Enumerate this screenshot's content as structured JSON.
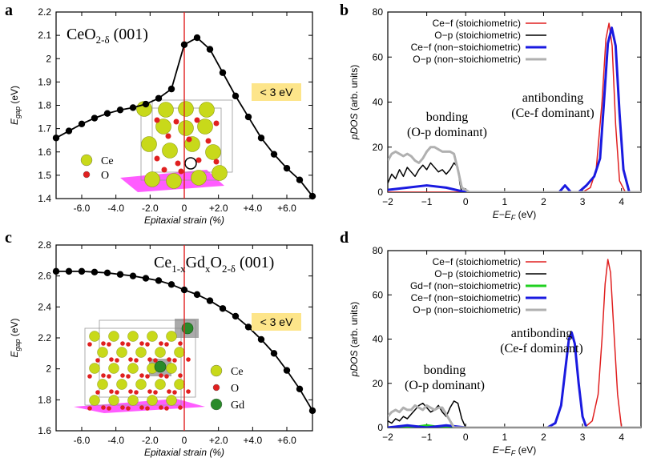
{
  "panels": {
    "a": {
      "letter": "a"
    },
    "b": {
      "letter": "b"
    },
    "c": {
      "letter": "c"
    },
    "d": {
      "letter": "d"
    }
  },
  "chart_data": [
    {
      "id": "a",
      "type": "line",
      "title_main": "CeO",
      "title_sub": "2-δ",
      "title_tail": " (001)",
      "xlabel": "Epitaxial strain (%)",
      "ylabel_main": "E",
      "ylabel_sub": "gap",
      "ylabel_tail": " (eV)",
      "xlim": [
        -7.5,
        7.5
      ],
      "ylim": [
        1.4,
        2.2
      ],
      "xticks": [
        -6,
        -4,
        -2,
        0,
        2,
        4,
        6
      ],
      "xtick_labels": [
        "-6.0",
        "-4.0",
        "-2.0",
        "0",
        "+2.0",
        "+4.0",
        "+6.0"
      ],
      "yticks": [
        1.4,
        1.5,
        1.6,
        1.7,
        1.8,
        1.9,
        2.0,
        2.1,
        2.2
      ],
      "ytick_labels": [
        "1.4",
        "1.5",
        "1.6",
        "1.7",
        "1.8",
        "1.9",
        "2",
        "2.1",
        "2.2"
      ],
      "vline_x": 0,
      "annotation": "< 3 eV",
      "legend": [
        {
          "name": "Ce",
          "color": "#c8d91a"
        },
        {
          "name": "O",
          "color": "#e02020"
        }
      ],
      "series": [
        {
          "name": "Egap",
          "color": "#000000",
          "x": [
            -7.5,
            -6.75,
            -6.0,
            -5.25,
            -4.5,
            -3.75,
            -3.0,
            -2.25,
            -1.5,
            -0.75,
            0.0,
            0.75,
            1.5,
            2.25,
            3.0,
            3.75,
            4.5,
            5.25,
            6.0,
            6.75,
            7.5
          ],
          "y": [
            1.66,
            1.69,
            1.72,
            1.745,
            1.765,
            1.78,
            1.79,
            1.805,
            1.83,
            1.87,
            2.06,
            2.09,
            2.04,
            1.94,
            1.84,
            1.75,
            1.66,
            1.59,
            1.53,
            1.48,
            1.41
          ]
        }
      ]
    },
    {
      "id": "b",
      "type": "line",
      "xlabel_main": "E",
      "xlabel_mid": "−E",
      "xlabel_sub": "F",
      "xlabel_tail": " (eV)",
      "ylabel_main": "pDOS",
      "ylabel_tail": " (arb. units)",
      "xlim": [
        -2,
        4.5
      ],
      "ylim": [
        0,
        80
      ],
      "xticks": [
        -2,
        -1,
        0,
        1,
        2,
        3,
        4
      ],
      "xtick_labels": [
        "−2",
        "−1",
        "0",
        "1",
        "2",
        "3",
        "4"
      ],
      "yticks": [
        0,
        20,
        40,
        60,
        80
      ],
      "ytick_labels": [
        "0",
        "20",
        "40",
        "60",
        "80"
      ],
      "annotations": [
        {
          "line1": "bonding",
          "line2": "(O-p dominant)"
        },
        {
          "line1": "antibonding",
          "line2": "(Ce-f dominant)"
        }
      ],
      "legend": [
        {
          "name": "Ce−f (stoichiometric)",
          "color": "#e02020",
          "width": 1.5
        },
        {
          "name": "O−p (stoichiometric)",
          "color": "#000000",
          "width": 1.5
        },
        {
          "name": "Ce−f (non−stoichiometric)",
          "color": "#1a1ae0",
          "width": 3
        },
        {
          "name": "O−p (non−stoichiometric)",
          "color": "#b0b0b0",
          "width": 3
        }
      ],
      "series": [
        {
          "name": "Ce−f (stoichiometric)",
          "color": "#e02020",
          "width": 1.5,
          "x": [
            -2,
            3.0,
            3.2,
            3.35,
            3.5,
            3.6,
            3.68,
            3.76,
            3.85,
            3.95,
            4.1,
            4.5
          ],
          "y": [
            0,
            0,
            2,
            10,
            40,
            68,
            75,
            65,
            30,
            5,
            0,
            0
          ]
        },
        {
          "name": "O−p (stoichiometric)",
          "color": "#000000",
          "width": 1.5,
          "x": [
            -2,
            -1.9,
            -1.8,
            -1.7,
            -1.6,
            -1.5,
            -1.4,
            -1.3,
            -1.2,
            -1.1,
            -1.0,
            -0.9,
            -0.8,
            -0.7,
            -0.6,
            -0.5,
            -0.4,
            -0.3,
            -0.2,
            -0.15,
            -0.1,
            0.0,
            4.5
          ],
          "y": [
            4,
            8,
            6,
            10,
            7,
            11,
            9,
            7,
            10,
            12,
            10,
            13,
            11,
            9,
            10,
            8,
            10,
            13,
            11,
            4,
            0,
            0,
            0
          ]
        },
        {
          "name": "Ce−f (non−stoichiometric)",
          "color": "#1a1ae0",
          "width": 3,
          "x": [
            -2,
            -1.5,
            -1.0,
            -0.5,
            0,
            2.0,
            2.4,
            2.55,
            2.7,
            2.9,
            3.1,
            3.3,
            3.45,
            3.55,
            3.65,
            3.75,
            3.85,
            3.95,
            4.05,
            4.2,
            4.5
          ],
          "y": [
            1,
            2,
            3,
            2,
            0,
            0,
            0,
            3,
            0,
            0,
            3,
            7,
            15,
            40,
            66,
            73,
            65,
            35,
            10,
            0,
            0
          ]
        },
        {
          "name": "O−p (non−stoichiometric)",
          "color": "#b0b0b0",
          "width": 3,
          "x": [
            -2,
            -1.9,
            -1.8,
            -1.7,
            -1.6,
            -1.5,
            -1.4,
            -1.3,
            -1.2,
            -1.1,
            -1.0,
            -0.9,
            -0.8,
            -0.7,
            -0.6,
            -0.5,
            -0.4,
            -0.3,
            -0.2,
            -0.1,
            0.1,
            4.5
          ],
          "y": [
            14,
            17,
            18,
            17,
            16,
            17,
            16,
            14,
            13,
            15,
            18,
            20,
            20,
            19,
            18,
            18,
            18,
            17,
            10,
            2,
            0,
            0
          ]
        }
      ]
    },
    {
      "id": "c",
      "type": "line",
      "title_parts": [
        {
          "t": "Ce",
          "sub": false
        },
        {
          "t": "1-x",
          "sub": true
        },
        {
          "t": "Gd",
          "sub": false
        },
        {
          "t": "x",
          "sub": true
        },
        {
          "t": "O",
          "sub": false
        },
        {
          "t": "2-δ",
          "sub": true
        },
        {
          "t": " (001)",
          "sub": false
        }
      ],
      "xlabel": "Epitaxial strain (%)",
      "ylabel_main": "E",
      "ylabel_sub": "gap",
      "ylabel_tail": " (eV)",
      "xlim": [
        -7.5,
        7.5
      ],
      "ylim": [
        1.6,
        2.8
      ],
      "xticks": [
        -6,
        -4,
        -2,
        0,
        2,
        4,
        6
      ],
      "xtick_labels": [
        "-6.0",
        "-4.0",
        "-2.0",
        "0",
        "+2.0",
        "+4.0",
        "+6.0"
      ],
      "yticks": [
        1.6,
        1.8,
        2.0,
        2.2,
        2.4,
        2.6,
        2.8
      ],
      "ytick_labels": [
        "1.6",
        "1.8",
        "2",
        "2.2",
        "2.4",
        "2.6",
        "2.8"
      ],
      "vline_x": 0,
      "annotation": "< 3 eV",
      "legend": [
        {
          "name": "Ce",
          "color": "#c8d91a"
        },
        {
          "name": "O",
          "color": "#e02020"
        },
        {
          "name": "Gd",
          "color": "#2a8a2a"
        }
      ],
      "series": [
        {
          "name": "Egap",
          "color": "#000000",
          "x": [
            -7.5,
            -6.75,
            -6.0,
            -5.25,
            -4.5,
            -3.75,
            -3.0,
            -2.25,
            -1.5,
            -0.75,
            0.0,
            0.75,
            1.5,
            2.25,
            3.0,
            3.75,
            4.5,
            5.25,
            6.0,
            6.75,
            7.5
          ],
          "y": [
            2.63,
            2.63,
            2.63,
            2.625,
            2.62,
            2.61,
            2.6,
            2.585,
            2.57,
            2.545,
            2.51,
            2.48,
            2.44,
            2.39,
            2.34,
            2.27,
            2.19,
            2.1,
            1.99,
            1.87,
            1.73
          ]
        }
      ]
    },
    {
      "id": "d",
      "type": "line",
      "xlabel_main": "E",
      "xlabel_mid": "−E",
      "xlabel_sub": "F",
      "xlabel_tail": " (eV)",
      "ylabel_main": "pDOS",
      "ylabel_tail": " (arb. units)",
      "xlim": [
        -2,
        4.5
      ],
      "ylim": [
        0,
        80
      ],
      "xticks": [
        -2,
        -1,
        0,
        1,
        2,
        3,
        4
      ],
      "xtick_labels": [
        "−2",
        "−1",
        "0",
        "1",
        "2",
        "3",
        "4"
      ],
      "yticks": [
        0,
        20,
        40,
        60,
        80
      ],
      "ytick_labels": [
        "0",
        "20",
        "40",
        "60",
        "80"
      ],
      "annotations": [
        {
          "line1": "bonding",
          "line2": "(O-p dominant)"
        },
        {
          "line1": "antibonding",
          "line2": "(Ce-f dominant)"
        }
      ],
      "legend": [
        {
          "name": "Ce−f (stoichiometric)",
          "color": "#e02020",
          "width": 1.5
        },
        {
          "name": "O−p (stoichiometric)",
          "color": "#000000",
          "width": 1.5
        },
        {
          "name": "Gd−f (non−stoichiometric)",
          "color": "#20d020",
          "width": 3
        },
        {
          "name": "Ce−f (non−stoichiometric)",
          "color": "#1a1ae0",
          "width": 3
        },
        {
          "name": "O−p (non−stoichiometric)",
          "color": "#b0b0b0",
          "width": 3
        }
      ],
      "series": [
        {
          "name": "Ce−f (stoichiometric)",
          "color": "#e02020",
          "width": 1.5,
          "x": [
            -2,
            3.05,
            3.25,
            3.4,
            3.5,
            3.58,
            3.65,
            3.72,
            3.8,
            3.9,
            4.0,
            4.5
          ],
          "y": [
            0,
            0,
            3,
            15,
            40,
            65,
            76,
            70,
            45,
            15,
            0,
            0
          ]
        },
        {
          "name": "O−p (stoichiometric)",
          "color": "#000000",
          "width": 1.5,
          "x": [
            -2,
            -1.9,
            -1.8,
            -1.7,
            -1.6,
            -1.5,
            -1.4,
            -1.3,
            -1.2,
            -1.1,
            -1.0,
            -0.9,
            -0.8,
            -0.7,
            -0.6,
            -0.5,
            -0.4,
            -0.3,
            -0.2,
            -0.1,
            0.0,
            4.5
          ],
          "y": [
            3,
            2,
            4,
            3,
            5,
            4,
            6,
            8,
            10,
            11,
            9,
            7,
            8,
            10,
            7,
            5,
            9,
            12,
            11,
            4,
            0,
            0
          ]
        },
        {
          "name": "Gd−f (non−stoichiometric)",
          "color": "#20d020",
          "width": 3,
          "x": [
            -2,
            -1.5,
            -1.2,
            -1.0,
            -0.8,
            0,
            4.5
          ],
          "y": [
            0,
            0,
            0.5,
            1,
            0.5,
            0,
            0
          ]
        },
        {
          "name": "Ce−f (non−stoichiometric)",
          "color": "#1a1ae0",
          "width": 3,
          "x": [
            -2,
            -1.5,
            -1.0,
            -0.5,
            0,
            2.1,
            2.3,
            2.45,
            2.55,
            2.65,
            2.72,
            2.8,
            2.9,
            3.0,
            3.1,
            4.5
          ],
          "y": [
            0,
            1,
            0,
            1,
            0,
            0,
            2,
            10,
            25,
            40,
            43,
            38,
            20,
            5,
            0,
            0
          ]
        },
        {
          "name": "O−p (non−stoichiometric)",
          "color": "#b0b0b0",
          "width": 3,
          "x": [
            -2,
            -1.9,
            -1.8,
            -1.7,
            -1.6,
            -1.5,
            -1.4,
            -1.3,
            -1.2,
            -1.1,
            -1.0,
            -0.9,
            -0.8,
            -0.7,
            -0.6,
            -0.5,
            -0.4,
            -0.3,
            4.5
          ],
          "y": [
            5,
            7,
            8,
            7,
            9,
            8,
            8,
            10,
            9,
            8,
            10,
            9,
            8,
            9,
            9,
            6,
            3,
            0,
            0
          ]
        }
      ]
    }
  ]
}
